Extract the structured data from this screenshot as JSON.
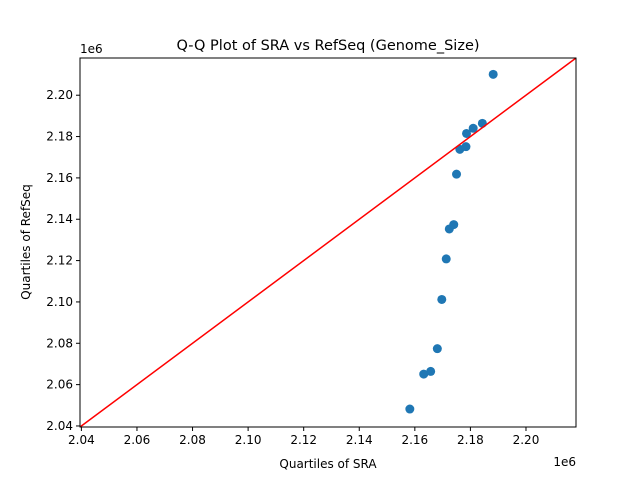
{
  "chart_data": {
    "type": "scatter",
    "title": "Q-Q Plot of SRA vs RefSeq (Genome_Size)",
    "xlabel": "Quartiles of SRA",
    "ylabel": "Quartiles of RefSeq",
    "x_offset_label": "1e6",
    "y_offset_label": "1e6",
    "xlim": [
      2.0395,
      2.218
    ],
    "ylim": [
      2.0395,
      2.218
    ],
    "xticks": [
      "2.04",
      "2.06",
      "2.08",
      "2.10",
      "2.12",
      "2.14",
      "2.16",
      "2.18",
      "2.20"
    ],
    "yticks": [
      "2.04",
      "2.06",
      "2.08",
      "2.10",
      "2.12",
      "2.14",
      "2.16",
      "2.18",
      "2.20"
    ],
    "grid": false,
    "point_color": "#1f77b4",
    "line_color": "#ff0000",
    "reference_line": "y = x",
    "points": [
      [
        2.1582,
        2.0482
      ],
      [
        2.1632,
        2.0651
      ],
      [
        2.1657,
        2.0664
      ],
      [
        2.1681,
        2.0774
      ],
      [
        2.1697,
        2.1012
      ],
      [
        2.1713,
        2.1208
      ],
      [
        2.1724,
        2.1353
      ],
      [
        2.174,
        2.1374
      ],
      [
        2.175,
        2.1618
      ],
      [
        2.1762,
        2.1738
      ],
      [
        2.1784,
        2.1751
      ],
      [
        2.1786,
        2.1815
      ],
      [
        2.181,
        2.184
      ],
      [
        2.1843,
        2.1864
      ],
      [
        2.1882,
        2.2101
      ]
    ]
  }
}
